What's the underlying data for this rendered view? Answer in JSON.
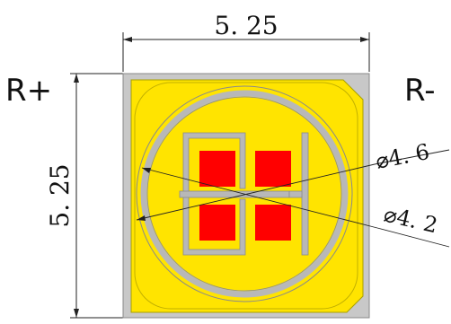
{
  "dimensions": {
    "width_label": "5. 25",
    "height_label": "5. 25",
    "outer_diameter_label": "⌀4. 6",
    "inner_diameter_label": "⌀4. 2"
  },
  "poles": {
    "positive": "R+",
    "negative": "R-"
  },
  "colors": {
    "body": "#c8c8c8",
    "pad": "#ffe400",
    "chip": "#ff0000",
    "trace": "#b8b8b8",
    "line": "#222222"
  },
  "chips": {
    "count": 4
  }
}
